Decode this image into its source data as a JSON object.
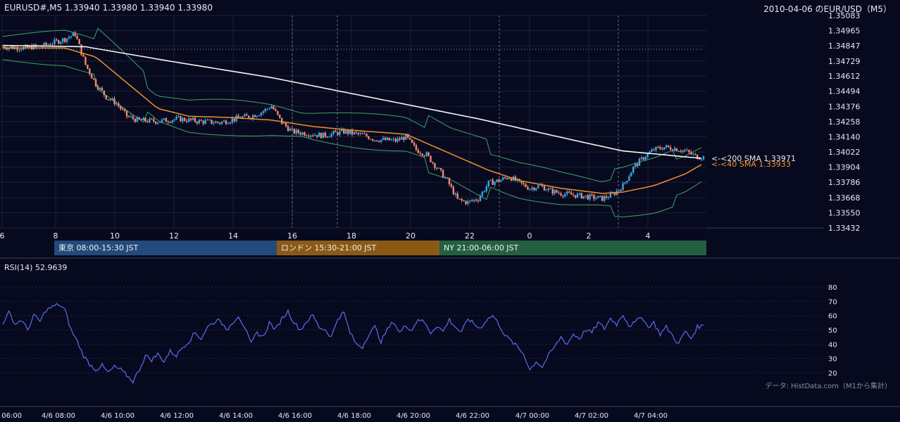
{
  "chart_data": [
    {
      "type": "candlestick",
      "title": "EURUSD#,M5 1.33940 1.33980 1.33940 1.33980",
      "subtitle": "2010-04-06 のEUR/USD（M5）",
      "ylim": [
        1.33432,
        1.35083
      ],
      "y_ticks": [
        "1.35083",
        "1.34965",
        "1.34847",
        "1.34729",
        "1.34612",
        "1.34494",
        "1.34376",
        "1.34258",
        "1.34140",
        "1.34022",
        "1.33904",
        "1.33786",
        "1.33668",
        "1.33550",
        "1.33432"
      ],
      "x_ticks": [
        "6",
        "8",
        "10",
        "12",
        "14",
        "16",
        "18",
        "20",
        "22",
        "0",
        "2",
        "4"
      ],
      "grid": true,
      "last_price": 1.3398,
      "close_path": [
        [
          0,
          1.3484
        ],
        [
          10,
          1.3483
        ],
        [
          20,
          1.3485
        ],
        [
          30,
          1.349
        ],
        [
          35,
          1.3494
        ],
        [
          40,
          1.347
        ],
        [
          45,
          1.3455
        ],
        [
          50,
          1.3445
        ],
        [
          55,
          1.344
        ],
        [
          60,
          1.343
        ],
        [
          65,
          1.3427
        ],
        [
          75,
          1.3426
        ],
        [
          85,
          1.3428
        ],
        [
          95,
          1.3426
        ],
        [
          105,
          1.3425
        ],
        [
          115,
          1.3429
        ],
        [
          120,
          1.343
        ],
        [
          125,
          1.3433
        ],
        [
          130,
          1.3438
        ],
        [
          135,
          1.3425
        ],
        [
          140,
          1.3418
        ],
        [
          145,
          1.3417
        ],
        [
          155,
          1.3415
        ],
        [
          165,
          1.3418
        ],
        [
          175,
          1.3415
        ],
        [
          180,
          1.3412
        ],
        [
          190,
          1.3411
        ],
        [
          195,
          1.3414
        ],
        [
          200,
          1.3404
        ],
        [
          205,
          1.34
        ],
        [
          210,
          1.339
        ],
        [
          215,
          1.338
        ],
        [
          220,
          1.3365
        ],
        [
          225,
          1.3363
        ],
        [
          230,
          1.3366
        ],
        [
          235,
          1.3378
        ],
        [
          240,
          1.338
        ],
        [
          245,
          1.3383
        ],
        [
          250,
          1.3378
        ],
        [
          255,
          1.3374
        ],
        [
          260,
          1.3376
        ],
        [
          265,
          1.3372
        ],
        [
          270,
          1.337
        ],
        [
          275,
          1.3369
        ],
        [
          280,
          1.3368
        ],
        [
          285,
          1.3367
        ],
        [
          290,
          1.3366
        ],
        [
          295,
          1.3369
        ],
        [
          300,
          1.3376
        ],
        [
          305,
          1.339
        ],
        [
          310,
          1.3398
        ],
        [
          315,
          1.3404
        ],
        [
          320,
          1.3406
        ],
        [
          325,
          1.3405
        ],
        [
          330,
          1.3403
        ],
        [
          335,
          1.3399
        ],
        [
          339,
          1.3398
        ]
      ],
      "indicators": [
        {
          "name": "<-<200 SMA 1.33971",
          "value": 1.33971,
          "color": "#f5f5f5",
          "path": [
            [
              0,
              1.3485
            ],
            [
              40,
              1.3484
            ],
            [
              80,
              1.3473
            ],
            [
              130,
              1.346
            ],
            [
              180,
              1.3444
            ],
            [
              230,
              1.3428
            ],
            [
              280,
              1.341
            ],
            [
              300,
              1.3403
            ],
            [
              339,
              1.33971
            ]
          ]
        },
        {
          "name": "<-<40 SMA 1.33933",
          "value": 1.33933,
          "color": "#f0902a",
          "path": [
            [
              0,
              1.3483
            ],
            [
              30,
              1.3483
            ],
            [
              45,
              1.3476
            ],
            [
              60,
              1.3456
            ],
            [
              75,
              1.3436
            ],
            [
              90,
              1.343
            ],
            [
              110,
              1.3429
            ],
            [
              130,
              1.3427
            ],
            [
              150,
              1.3422
            ],
            [
              170,
              1.3419
            ],
            [
              195,
              1.3416
            ],
            [
              215,
              1.3402
            ],
            [
              235,
              1.3388
            ],
            [
              250,
              1.338
            ],
            [
              270,
              1.3374
            ],
            [
              290,
              1.337
            ],
            [
              300,
              1.3371
            ],
            [
              315,
              1.3376
            ],
            [
              330,
              1.3385
            ],
            [
              339,
              1.33933
            ]
          ]
        }
      ],
      "bollinger_color": "#3fa368",
      "up_color": "#3aa6e8",
      "down_color": "#ef8a72",
      "sessions": [
        {
          "label": "東京 08:00-15:30 JST",
          "color": "#224a7a"
        },
        {
          "label": "ロンドン 15:30-21:00 JST",
          "color": "#8a5a14"
        },
        {
          "label": "NY 21:00-06:00 JST",
          "color": "#246040"
        }
      ]
    },
    {
      "type": "line",
      "title": "RSI(14) 52.9639",
      "ylim": [
        15,
        85
      ],
      "y_ticks": [
        "80",
        "70",
        "60",
        "50",
        "40",
        "30",
        "20"
      ],
      "x_ticks": [
        "4/6 06:00",
        "4/6 08:00",
        "4/6 10:00",
        "4/6 12:00",
        "4/6 14:00",
        "4/6 16:00",
        "4/6 18:00",
        "4/6 20:00",
        "4/6 22:00",
        "4/7 00:00",
        "4/7 02:00",
        "4/7 04:00"
      ],
      "series": [
        {
          "color": "#5c6cf0",
          "points": [
            [
              0,
              55
            ],
            [
              3,
              62
            ],
            [
              6,
              54
            ],
            [
              9,
              57
            ],
            [
              12,
              50
            ],
            [
              15,
              60
            ],
            [
              18,
              56
            ],
            [
              21,
              64
            ],
            [
              24,
              66
            ],
            [
              27,
              68
            ],
            [
              30,
              64
            ],
            [
              33,
              50
            ],
            [
              36,
              42
            ],
            [
              39,
              32
            ],
            [
              42,
              26
            ],
            [
              45,
              22
            ],
            [
              48,
              25
            ],
            [
              51,
              20
            ],
            [
              54,
              24
            ],
            [
              57,
              22
            ],
            [
              60,
              18
            ],
            [
              63,
              14
            ],
            [
              66,
              22
            ],
            [
              69,
              32
            ],
            [
              72,
              29
            ],
            [
              75,
              33
            ],
            [
              78,
              28
            ],
            [
              81,
              35
            ],
            [
              84,
              32
            ],
            [
              87,
              38
            ],
            [
              90,
              42
            ],
            [
              93,
              48
            ],
            [
              96,
              44
            ],
            [
              99,
              52
            ],
            [
              102,
              55
            ],
            [
              105,
              58
            ],
            [
              108,
              49
            ],
            [
              111,
              55
            ],
            [
              114,
              60
            ],
            [
              117,
              52
            ],
            [
              120,
              40
            ],
            [
              123,
              48
            ],
            [
              126,
              45
            ],
            [
              129,
              55
            ],
            [
              132,
              50
            ],
            [
              135,
              58
            ],
            [
              138,
              63
            ],
            [
              141,
              55
            ],
            [
              144,
              50
            ],
            [
              147,
              56
            ],
            [
              150,
              60
            ],
            [
              153,
              52
            ],
            [
              156,
              50
            ],
            [
              159,
              45
            ],
            [
              162,
              58
            ],
            [
              165,
              62
            ],
            [
              168,
              48
            ],
            [
              171,
              40
            ],
            [
              174,
              38
            ],
            [
              177,
              47
            ],
            [
              180,
              52
            ],
            [
              183,
              42
            ],
            [
              186,
              50
            ],
            [
              189,
              56
            ],
            [
              192,
              48
            ],
            [
              195,
              53
            ],
            [
              198,
              50
            ],
            [
              201,
              58
            ],
            [
              204,
              55
            ],
            [
              207,
              48
            ],
            [
              210,
              53
            ],
            [
              213,
              49
            ],
            [
              216,
              57
            ],
            [
              219,
              52
            ],
            [
              222,
              48
            ],
            [
              225,
              58
            ],
            [
              228,
              54
            ],
            [
              231,
              51
            ],
            [
              234,
              57
            ],
            [
              237,
              60
            ],
            [
              240,
              54
            ],
            [
              243,
              46
            ],
            [
              246,
              42
            ],
            [
              249,
              38
            ],
            [
              252,
              33
            ],
            [
              255,
              22
            ],
            [
              258,
              28
            ],
            [
              261,
              24
            ],
            [
              264,
              32
            ],
            [
              267,
              38
            ],
            [
              270,
              45
            ],
            [
              273,
              40
            ],
            [
              276,
              47
            ],
            [
              279,
              44
            ],
            [
              282,
              50
            ],
            [
              285,
              48
            ],
            [
              288,
              55
            ],
            [
              291,
              51
            ],
            [
              294,
              58
            ],
            [
              297,
              54
            ],
            [
              300,
              61
            ],
            [
              303,
              53
            ],
            [
              306,
              55
            ],
            [
              309,
              60
            ],
            [
              312,
              52
            ],
            [
              315,
              55
            ],
            [
              318,
              47
            ],
            [
              321,
              52
            ],
            [
              324,
              46
            ],
            [
              327,
              40
            ],
            [
              330,
              49
            ],
            [
              333,
              44
            ],
            [
              336,
              52
            ],
            [
              339,
              53
            ]
          ]
        }
      ],
      "grid": true,
      "footnote": "データ: HistData.com（M1から集計）"
    }
  ]
}
